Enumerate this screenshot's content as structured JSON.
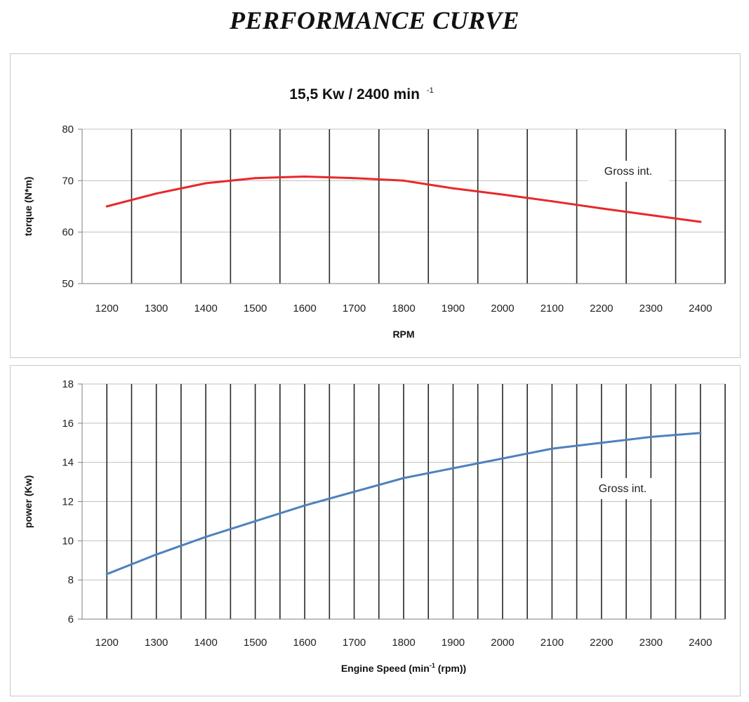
{
  "page_title": "PERFORMANCE CURVE",
  "colors": {
    "torque": "#e8282b",
    "power": "#4f81bd",
    "vgrid": "#1f2a22",
    "hgrid": "#c0c0c0"
  },
  "chart_data": [
    {
      "type": "line",
      "title": "15,5 Kw / 2400 min",
      "title_superscript": "-1",
      "xlabel": "RPM",
      "ylabel": "torque (N*m)",
      "xlim": [
        1150,
        2450
      ],
      "ylim": [
        50,
        80
      ],
      "x_ticks": [
        1200,
        1300,
        1400,
        1500,
        1600,
        1700,
        1800,
        1900,
        2000,
        2100,
        2200,
        2300,
        2400
      ],
      "y_ticks": [
        50,
        60,
        70,
        80
      ],
      "vgrid_x": [
        1250,
        1350,
        1450,
        1550,
        1650,
        1750,
        1850,
        1950,
        2050,
        2150,
        2250,
        2350,
        2450
      ],
      "annotation": "Gross int.",
      "series": [
        {
          "x": [
            1200,
            1300,
            1400,
            1500,
            1600,
            1700,
            1800,
            1900,
            2000,
            2100,
            2200,
            2300,
            2400
          ],
          "y": [
            65,
            67.5,
            69.5,
            70.5,
            70.8,
            70.5,
            70,
            68.5,
            67.3,
            66,
            64.6,
            63.3,
            62
          ]
        }
      ]
    },
    {
      "type": "line",
      "xlabel": "Engine Speed (min",
      "xlabel_superscript": "-1",
      "xlabel_suffix": " (rpm))",
      "ylabel": "power (Kw)",
      "xlim": [
        1150,
        2450
      ],
      "ylim": [
        6,
        18
      ],
      "x_ticks": [
        1200,
        1300,
        1400,
        1500,
        1600,
        1700,
        1800,
        1900,
        2000,
        2100,
        2200,
        2300,
        2400
      ],
      "y_ticks": [
        6,
        8,
        10,
        12,
        14,
        16,
        18
      ],
      "vgrid_x": [
        1200,
        1250,
        1300,
        1350,
        1400,
        1450,
        1500,
        1550,
        1600,
        1650,
        1700,
        1750,
        1800,
        1850,
        1900,
        1950,
        2000,
        2050,
        2100,
        2150,
        2200,
        2250,
        2300,
        2350,
        2400,
        2450
      ],
      "annotation": "Gross int.",
      "series": [
        {
          "x": [
            1200,
            1300,
            1400,
            1500,
            1600,
            1700,
            1800,
            1900,
            2000,
            2100,
            2200,
            2300,
            2400
          ],
          "y": [
            8.3,
            9.3,
            10.2,
            11.0,
            11.8,
            12.5,
            13.2,
            13.7,
            14.2,
            14.7,
            15.0,
            15.3,
            15.5
          ]
        }
      ]
    }
  ]
}
